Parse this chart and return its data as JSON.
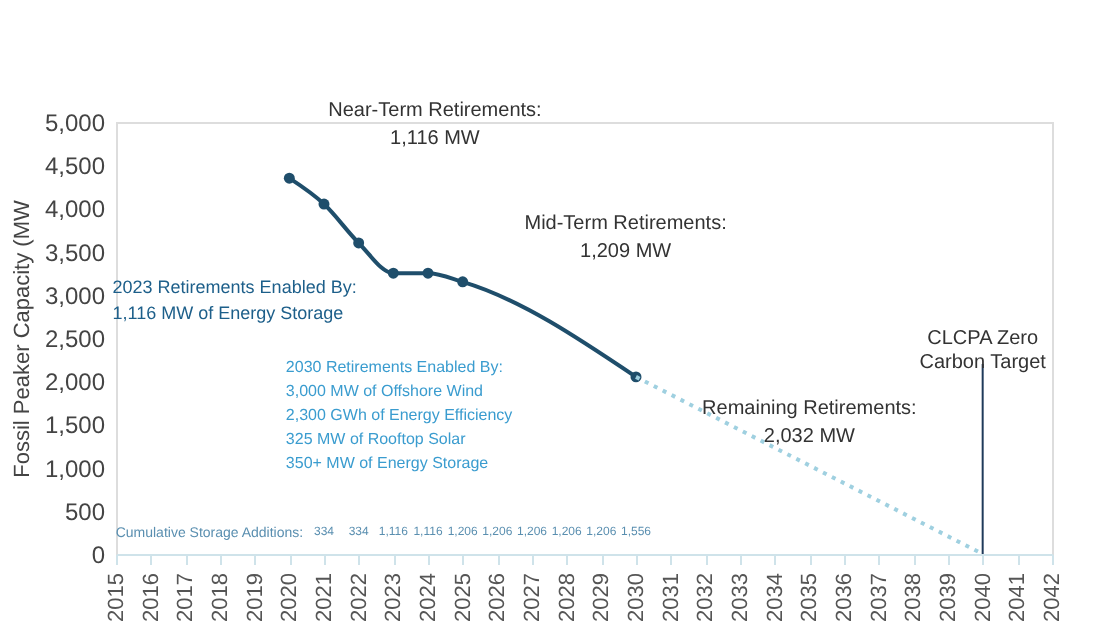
{
  "chart_data": {
    "type": "line",
    "ylabel": "Fossil Peaker Capacity (MW",
    "xlim": [
      2015,
      2042
    ],
    "xticks": [
      2015,
      2016,
      2017,
      2018,
      2019,
      2020,
      2021,
      2022,
      2023,
      2024,
      2025,
      2026,
      2027,
      2028,
      2029,
      2030,
      2031,
      2032,
      2033,
      2034,
      2035,
      2036,
      2037,
      2038,
      2039,
      2040,
      2041,
      2042
    ],
    "ylim": [
      0,
      5000
    ],
    "yticks": [
      0,
      500,
      {
        "value": 1000,
        "label": "1,000"
      },
      {
        "value": 1500,
        "label": "1,500"
      },
      {
        "value": 2000,
        "label": "2,000"
      },
      {
        "value": 2500,
        "label": "2,500"
      },
      {
        "value": 3000,
        "label": "3,000"
      },
      {
        "value": 3500,
        "label": "3,500"
      },
      {
        "value": 4000,
        "label": "4,000"
      },
      {
        "value": 4500,
        "label": "4,500"
      },
      {
        "value": 5000,
        "label": "5,000"
      }
    ],
    "series": [
      {
        "color": "#1f4e6b",
        "x": [
          2020,
          2021,
          2022,
          2023,
          2024,
          2025,
          2030
        ],
        "values": [
          4350,
          4050,
          3600,
          3250,
          3250,
          3150,
          2050
        ],
        "line_style": "solid"
      },
      {
        "color": "#9fd0e0",
        "x": [
          2030,
          2040
        ],
        "values": [
          2050,
          0
        ],
        "line_style": "dotted",
        "marker": "none"
      }
    ],
    "marker": "circle",
    "grid": false,
    "ref_lines": [
      {
        "axis": "x",
        "value": 2040,
        "label": "CLCPA Zero\nCarbon Target",
        "color": "#1f3a5a"
      }
    ],
    "annotations": [
      "Near-Term Retirements:\n1,116 MW",
      "Mid-Term Retirements:\n1,209 MW",
      "Remaining Retirements:\n2,032 MW",
      "2023 Retirements Enabled By:\n1,116 MW of Energy Storage",
      "2030 Retirements Enabled By:\n3,000 MW of Offshore Wind\n2,300 GWh of Energy Efficiency\n325 MW of Rooftop Solar\n350+ MW of Energy Storage",
      "Cumulative Storage Additions:",
      "334",
      "334",
      "1,116",
      "1,116",
      "1,206",
      "1,206",
      "1,206",
      "1,206",
      "1,206",
      "1,556"
    ]
  }
}
